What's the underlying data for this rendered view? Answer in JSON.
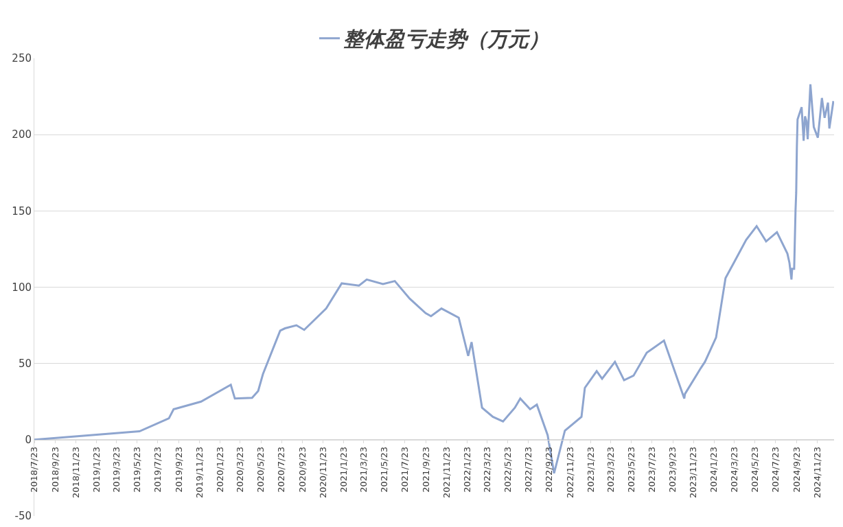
{
  "chart_data": {
    "type": "line",
    "legend": "top",
    "grid": "y",
    "marker": "none",
    "line_style": "solid",
    "xlim": [
      "2018-07-23",
      "2025-01-12"
    ],
    "xticks": [
      {
        "value": "2018-07-23",
        "label": "2018/7/23"
      },
      {
        "value": "2018-09-23",
        "label": "2018/9/23"
      },
      {
        "value": "2018-11-23",
        "label": "2018/11/23"
      },
      {
        "value": "2019-01-23",
        "label": "2019/1/23"
      },
      {
        "value": "2019-03-23",
        "label": "2019/3/23"
      },
      {
        "value": "2019-05-23",
        "label": "2019/5/23"
      },
      {
        "value": "2019-07-23",
        "label": "2019/7/23"
      },
      {
        "value": "2019-09-23",
        "label": "2019/9/23"
      },
      {
        "value": "2019-11-23",
        "label": "2019/11/23"
      },
      {
        "value": "2020-01-23",
        "label": "2020/1/23"
      },
      {
        "value": "2020-03-23",
        "label": "2020/3/23"
      },
      {
        "value": "2020-05-23",
        "label": "2020/5/23"
      },
      {
        "value": "2020-07-23",
        "label": "2020/7/23"
      },
      {
        "value": "2020-09-23",
        "label": "2020/9/23"
      },
      {
        "value": "2020-11-23",
        "label": "2020/11/23"
      },
      {
        "value": "2021-01-23",
        "label": "2021/1/23"
      },
      {
        "value": "2021-03-23",
        "label": "2021/3/23"
      },
      {
        "value": "2021-05-23",
        "label": "2021/5/23"
      },
      {
        "value": "2021-07-23",
        "label": "2021/7/23"
      },
      {
        "value": "2021-09-23",
        "label": "2021/9/23"
      },
      {
        "value": "2021-11-23",
        "label": "2021/11/23"
      },
      {
        "value": "2022-01-23",
        "label": "2022/1/23"
      },
      {
        "value": "2022-03-23",
        "label": "2022/3/23"
      },
      {
        "value": "2022-05-23",
        "label": "2022/5/23"
      },
      {
        "value": "2022-07-23",
        "label": "2022/7/23"
      },
      {
        "value": "2022-09-23",
        "label": "2022/9/23"
      },
      {
        "value": "2022-11-23",
        "label": "2022/11/23"
      },
      {
        "value": "2023-01-23",
        "label": "2023/1/23"
      },
      {
        "value": "2023-03-23",
        "label": "2023/3/23"
      },
      {
        "value": "2023-05-23",
        "label": "2023/5/23"
      },
      {
        "value": "2023-07-23",
        "label": "2023/7/23"
      },
      {
        "value": "2023-09-23",
        "label": "2023/9/23"
      },
      {
        "value": "2023-11-23",
        "label": "2023/11/23"
      },
      {
        "value": "2024-01-23",
        "label": "2024/1/23"
      },
      {
        "value": "2024-03-23",
        "label": "2024/3/23"
      },
      {
        "value": "2024-05-23",
        "label": "2024/5/23"
      },
      {
        "value": "2024-07-23",
        "label": "2024/7/23"
      },
      {
        "value": "2024-09-23",
        "label": "2024/9/23"
      },
      {
        "value": "2024-11-23",
        "label": "2024/11/23"
      }
    ],
    "ylim": [
      -50,
      250
    ],
    "yticks": [
      -50,
      0,
      50,
      100,
      150,
      200,
      250
    ],
    "x": [
      "2018-07-23",
      "2019-05-30",
      "2019-08-25",
      "2019-09-08",
      "2019-11-28",
      "2020-02-24",
      "2020-03-07",
      "2020-04-27",
      "2020-05-15",
      "2020-05-29",
      "2020-07-19",
      "2020-08-02",
      "2020-09-05",
      "2020-09-28",
      "2020-12-02",
      "2021-01-17",
      "2021-03-09",
      "2021-04-01",
      "2021-05-19",
      "2021-06-23",
      "2021-08-06",
      "2021-09-22",
      "2021-10-08",
      "2021-11-08",
      "2021-12-29",
      "2022-01-26",
      "2022-02-05",
      "2022-03-08",
      "2022-04-09",
      "2022-05-09",
      "2022-06-13",
      "2022-06-29",
      "2022-07-28",
      "2022-08-17",
      "2022-09-18",
      "2022-10-07",
      "2022-11-08",
      "2022-12-27",
      "2023-01-06",
      "2023-02-10",
      "2023-02-26",
      "2023-04-05",
      "2023-05-02",
      "2023-05-30",
      "2023-07-08",
      "2023-08-28",
      "2023-10-27",
      "2023-10-29",
      "2023-12-15",
      "2023-12-27",
      "2024-01-29",
      "2024-02-26",
      "2024-03-24",
      "2024-04-27",
      "2024-05-28",
      "2024-06-25",
      "2024-07-27",
      "2024-08-27",
      "2024-09-02",
      "2024-09-08",
      "2024-09-10",
      "2024-09-16",
      "2024-09-20",
      "2024-09-22",
      "2024-09-24",
      "2024-09-26",
      "2024-10-08",
      "2024-10-14",
      "2024-10-18",
      "2024-10-22",
      "2024-10-26",
      "2024-11-03",
      "2024-11-13",
      "2024-11-25",
      "2024-12-07",
      "2024-12-15",
      "2024-12-25",
      "2024-12-29",
      "2025-01-10"
    ],
    "series": [
      {
        "name": "整体盈亏走势（万元）",
        "color": "#8ea5cf",
        "values": [
          0,
          5.5,
          14,
          20,
          25,
          36,
          27,
          27.5,
          32,
          43,
          71.5,
          73,
          75,
          72,
          86,
          102.5,
          101,
          105,
          102,
          104,
          92.5,
          83,
          81,
          86,
          80,
          55,
          64,
          21,
          15,
          12,
          21,
          27,
          20,
          23,
          3,
          -22,
          6,
          15,
          34,
          45,
          40,
          51,
          39,
          42,
          57,
          65,
          27,
          30,
          47,
          51,
          67,
          106,
          117,
          131,
          140,
          130,
          136,
          122,
          116,
          105,
          112,
          112,
          150,
          162,
          192,
          210,
          218,
          196,
          212,
          209,
          197,
          233,
          205,
          198,
          224,
          211,
          221,
          204,
          222
        ]
      }
    ]
  }
}
